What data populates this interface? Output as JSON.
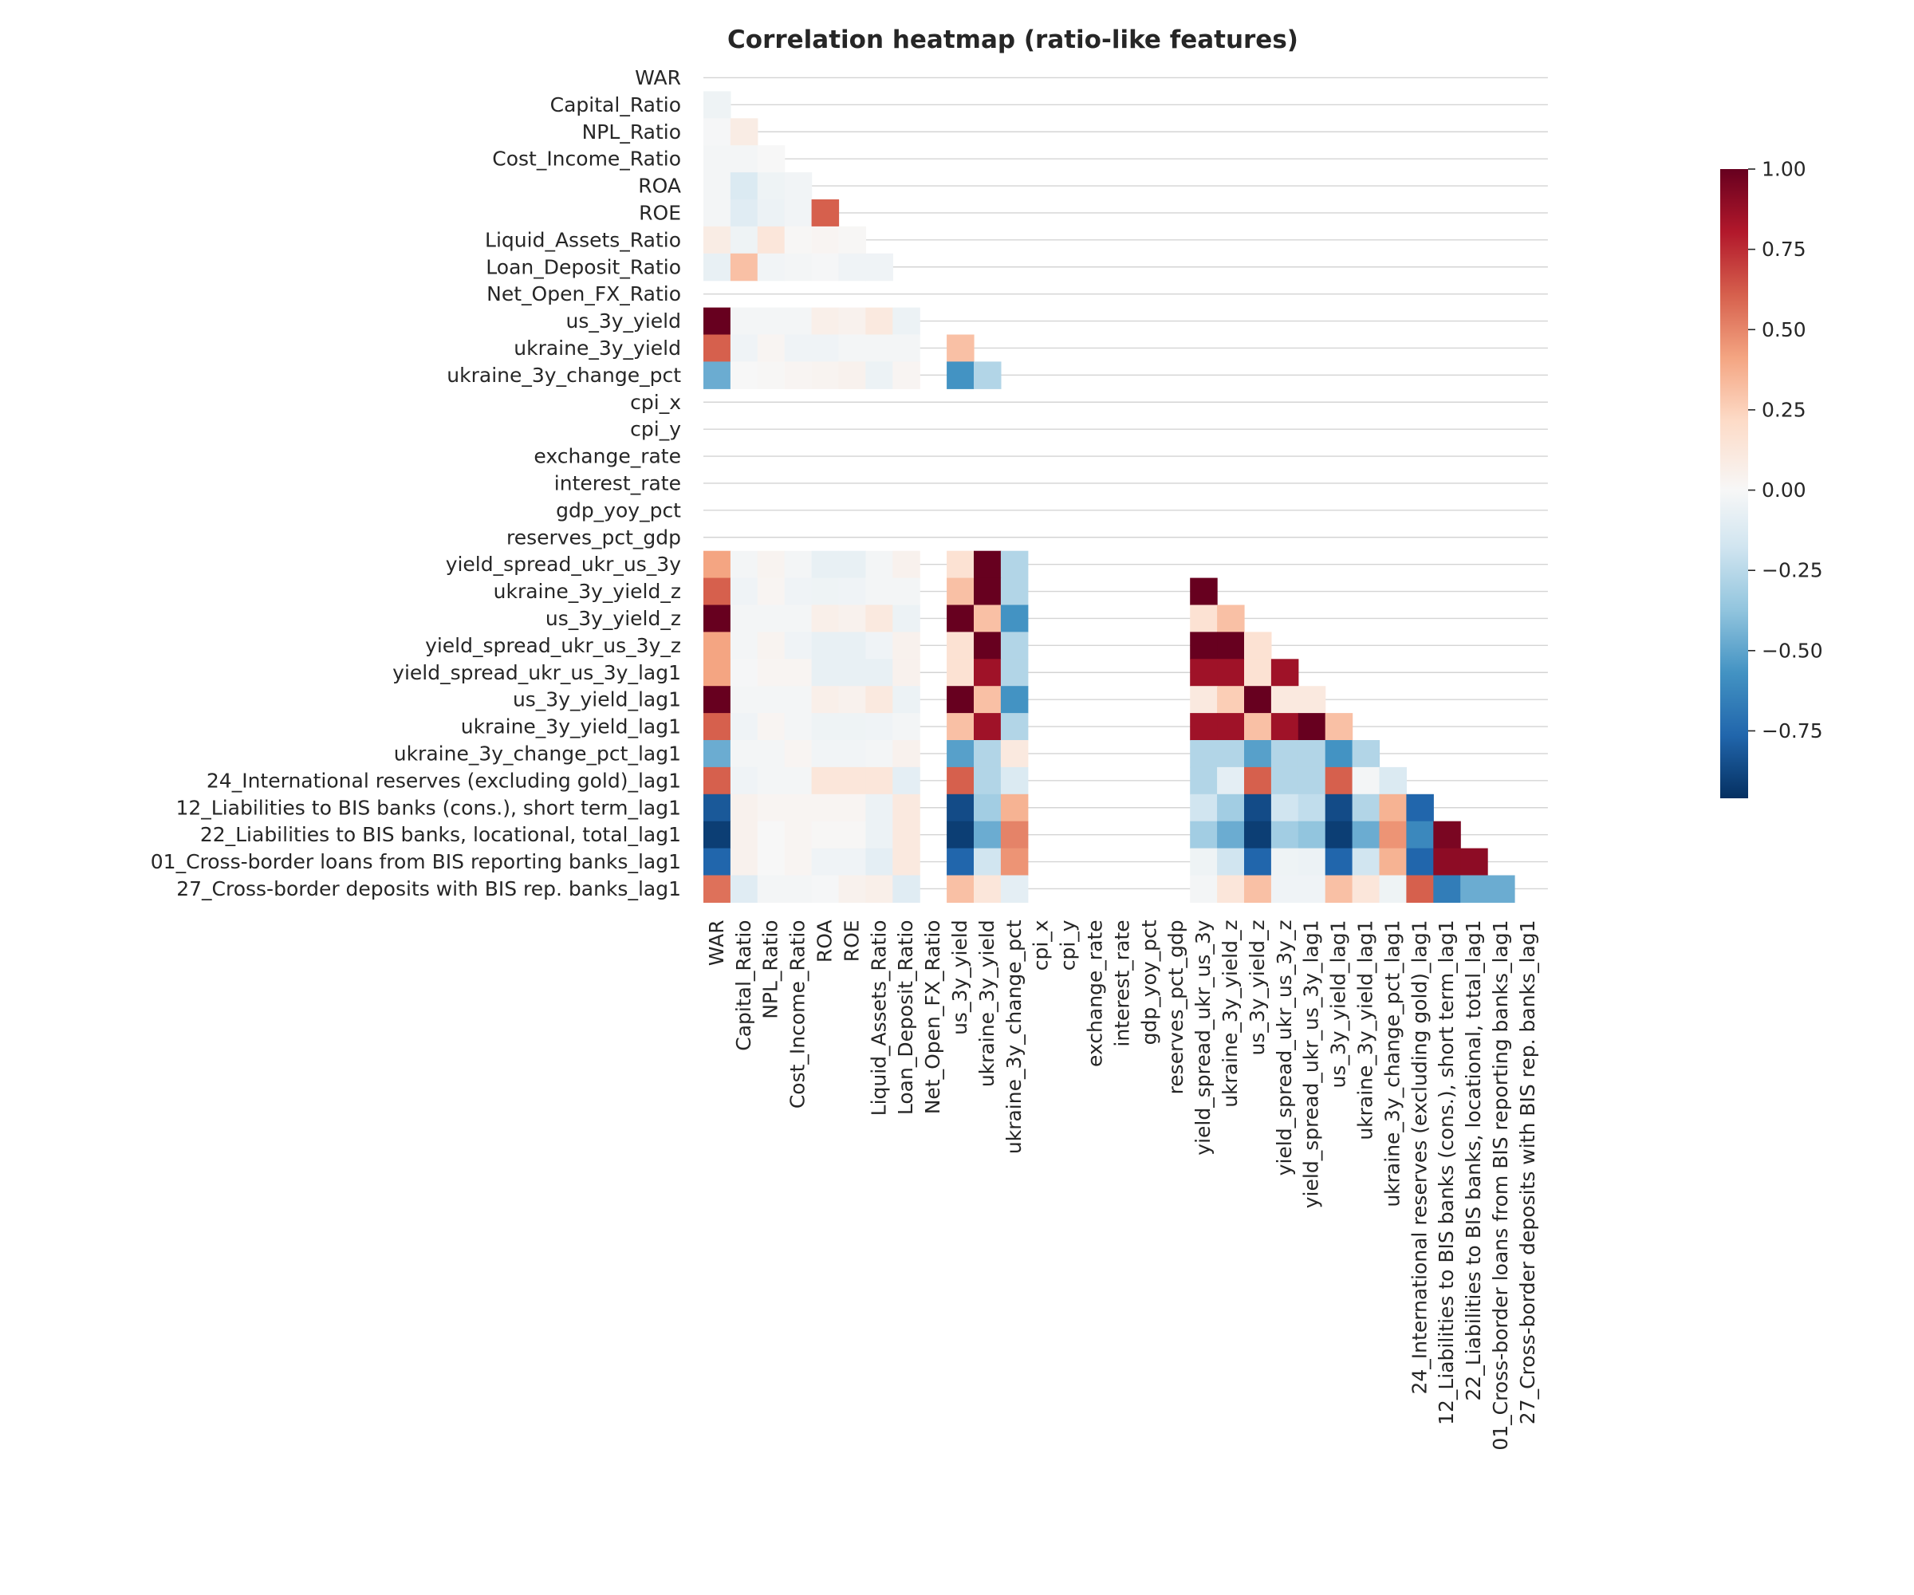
{
  "chart_data": {
    "type": "heatmap",
    "title": "Correlation heatmap (ratio-like features)",
    "labels": [
      "WAR",
      "Capital_Ratio",
      "NPL_Ratio",
      "Cost_Income_Ratio",
      "ROA",
      "ROE",
      "Liquid_Assets_Ratio",
      "Loan_Deposit_Ratio",
      "Net_Open_FX_Ratio",
      "us_3y_yield",
      "ukraine_3y_yield",
      "ukraine_3y_change_pct",
      "cpi_x",
      "cpi_y",
      "exchange_rate",
      "interest_rate",
      "gdp_yoy_pct",
      "reserves_pct_gdp",
      "yield_spread_ukr_us_3y",
      "ukraine_3y_yield_z",
      "us_3y_yield_z",
      "yield_spread_ukr_us_3y_z",
      "yield_spread_ukr_us_3y_lag1",
      "us_3y_yield_lag1",
      "ukraine_3y_yield_lag1",
      "ukraine_3y_change_pct_lag1",
      "24_International reserves (excluding gold)_lag1",
      "12_Liabilities to BIS banks (cons.), short term_lag1",
      "22_Liabilities to BIS banks, locational, total_lag1",
      "01_Cross-border loans from BIS reporting banks_lag1",
      "27_Cross-border deposits with BIS rep. banks_lag1"
    ],
    "mask": "upper-triangle including diagonal",
    "missing_rows_cols": [
      "Net_Open_FX_Ratio",
      "cpi_x",
      "cpi_y",
      "exchange_rate",
      "interest_rate",
      "gdp_yoy_pct",
      "reserves_pct_gdp"
    ],
    "lower_triangle_rows": {
      "Capital_Ratio": [
        -0.05
      ],
      "NPL_Ratio": [
        -0.01,
        0.08
      ],
      "Cost_Income_Ratio": [
        -0.02,
        -0.02,
        0.0
      ],
      "ROA": [
        -0.02,
        -0.15,
        -0.05,
        -0.03
      ],
      "ROE": [
        -0.02,
        -0.12,
        -0.06,
        -0.03,
        0.6
      ],
      "Liquid_Assets_Ratio": [
        0.08,
        -0.05,
        0.12,
        0.01,
        0.02,
        0.01
      ],
      "Loan_Deposit_Ratio": [
        -0.08,
        0.3,
        -0.03,
        -0.02,
        -0.01,
        -0.04,
        -0.04
      ],
      "Net_Open_FX_Ratio": [
        null,
        null,
        null,
        null,
        null,
        null,
        null,
        null
      ],
      "us_3y_yield": [
        1.0,
        -0.02,
        -0.02,
        -0.02,
        0.06,
        0.04,
        0.1,
        -0.06,
        null
      ],
      "ukraine_3y_yield": [
        0.6,
        -0.04,
        0.02,
        -0.04,
        -0.04,
        -0.02,
        -0.02,
        -0.02,
        null,
        0.3
      ],
      "ukraine_3y_change_pct": [
        -0.5,
        0.0,
        0.01,
        0.02,
        0.03,
        0.04,
        -0.06,
        0.02,
        null,
        -0.6,
        -0.3
      ],
      "cpi_x": [
        null,
        null,
        null,
        null,
        null,
        null,
        null,
        null,
        null,
        null,
        null,
        null
      ],
      "cpi_y": [
        null,
        null,
        null,
        null,
        null,
        null,
        null,
        null,
        null,
        null,
        null,
        null,
        null
      ],
      "exchange_rate": [
        null,
        null,
        null,
        null,
        null,
        null,
        null,
        null,
        null,
        null,
        null,
        null,
        null,
        null
      ],
      "interest_rate": [
        null,
        null,
        null,
        null,
        null,
        null,
        null,
        null,
        null,
        null,
        null,
        null,
        null,
        null,
        null
      ],
      "gdp_yoy_pct": [
        null,
        null,
        null,
        null,
        null,
        null,
        null,
        null,
        null,
        null,
        null,
        null,
        null,
        null,
        null,
        null
      ],
      "reserves_pct_gdp": [
        null,
        null,
        null,
        null,
        null,
        null,
        null,
        null,
        null,
        null,
        null,
        null,
        null,
        null,
        null,
        null,
        null
      ],
      "yield_spread_ukr_us_3y": [
        0.4,
        -0.02,
        0.03,
        -0.02,
        -0.08,
        -0.08,
        -0.02,
        0.04,
        null,
        0.15,
        1.0,
        -0.3,
        null,
        null,
        null,
        null,
        null,
        null
      ],
      "ukraine_3y_yield_z": [
        0.6,
        -0.04,
        0.02,
        -0.04,
        -0.05,
        -0.04,
        -0.02,
        -0.02,
        null,
        0.3,
        1.0,
        -0.3,
        null,
        null,
        null,
        null,
        null,
        null,
        1.0
      ],
      "us_3y_yield_z": [
        1.0,
        -0.02,
        -0.02,
        -0.02,
        0.06,
        0.04,
        0.1,
        -0.06,
        null,
        1.0,
        0.3,
        -0.6,
        null,
        null,
        null,
        null,
        null,
        null,
        0.15,
        0.3
      ],
      "yield_spread_ukr_us_3y_z": [
        0.4,
        -0.02,
        0.03,
        -0.04,
        -0.08,
        -0.08,
        -0.04,
        0.04,
        null,
        0.15,
        1.0,
        -0.3,
        null,
        null,
        null,
        null,
        null,
        null,
        1.0,
        1.0,
        0.15
      ],
      "yield_spread_ukr_us_3y_lag1": [
        0.4,
        -0.01,
        0.02,
        0.02,
        -0.08,
        -0.08,
        -0.08,
        0.04,
        null,
        0.15,
        0.85,
        -0.3,
        null,
        null,
        null,
        null,
        null,
        null,
        0.85,
        0.85,
        0.15,
        0.85
      ],
      "us_3y_yield_lag1": [
        1.0,
        -0.02,
        -0.02,
        -0.02,
        0.06,
        0.04,
        0.1,
        -0.06,
        null,
        1.0,
        0.3,
        -0.6,
        null,
        null,
        null,
        null,
        null,
        null,
        0.1,
        0.25,
        1.0,
        0.1,
        0.1
      ],
      "ukraine_3y_yield_lag1": [
        0.6,
        -0.04,
        0.02,
        -0.02,
        -0.05,
        -0.05,
        -0.04,
        -0.02,
        null,
        0.3,
        0.85,
        -0.3,
        null,
        null,
        null,
        null,
        null,
        null,
        0.85,
        0.85,
        0.3,
        0.85,
        1.0,
        0.3
      ],
      "ukraine_3y_change_pct_lag1": [
        -0.5,
        -0.02,
        -0.02,
        0.02,
        -0.03,
        -0.03,
        -0.02,
        0.04,
        null,
        -0.55,
        -0.3,
        0.1,
        null,
        null,
        null,
        null,
        null,
        null,
        -0.3,
        -0.3,
        -0.55,
        -0.3,
        -0.3,
        -0.6,
        -0.3
      ],
      "24_International reserves (excluding gold)_lag1": [
        0.6,
        -0.04,
        -0.02,
        -0.02,
        0.12,
        0.12,
        0.12,
        -0.1,
        null,
        0.6,
        -0.3,
        -0.15,
        null,
        null,
        null,
        null,
        null,
        null,
        -0.3,
        -0.1,
        0.6,
        -0.3,
        -0.3,
        0.6,
        -0.02,
        -0.15
      ],
      "12_Liabilities to BIS banks (cons.), short term_lag1": [
        -0.85,
        0.04,
        0.02,
        0.02,
        0.02,
        0.02,
        -0.06,
        0.1,
        null,
        -0.9,
        -0.35,
        0.35,
        null,
        null,
        null,
        null,
        null,
        null,
        -0.2,
        -0.35,
        -0.9,
        -0.2,
        -0.25,
        -0.9,
        -0.3,
        0.35,
        -0.8
      ],
      "22_Liabilities to BIS banks, locational, total_lag1": [
        -0.95,
        0.04,
        0.0,
        0.02,
        0.01,
        0.01,
        -0.06,
        0.1,
        null,
        -0.95,
        -0.5,
        0.5,
        null,
        null,
        null,
        null,
        null,
        null,
        -0.35,
        -0.5,
        -0.95,
        -0.35,
        -0.4,
        -0.95,
        -0.5,
        0.45,
        -0.65,
        0.95
      ],
      "01_Cross-border loans from BIS reporting banks_lag1": [
        -0.8,
        0.04,
        0.0,
        0.02,
        -0.04,
        -0.04,
        -0.1,
        0.1,
        null,
        -0.8,
        -0.2,
        0.45,
        null,
        null,
        null,
        null,
        null,
        null,
        -0.05,
        -0.2,
        -0.8,
        -0.05,
        -0.06,
        -0.8,
        -0.2,
        0.35,
        -0.8,
        0.9,
        0.9
      ],
      "27_Cross-border deposits with BIS rep. banks_lag1": [
        0.55,
        -0.12,
        -0.02,
        -0.02,
        -0.01,
        0.04,
        0.06,
        -0.12,
        null,
        0.3,
        0.12,
        -0.1,
        null,
        null,
        null,
        null,
        null,
        null,
        -0.02,
        0.12,
        0.3,
        -0.04,
        -0.04,
        0.3,
        0.12,
        -0.05,
        0.6,
        -0.7,
        -0.5,
        -0.5
      ]
    },
    "colorbar": {
      "ticks": [
        1.0,
        0.75,
        0.5,
        0.25,
        0.0,
        -0.25,
        -0.5,
        -0.75
      ],
      "tick_labels": [
        "1.00",
        "0.75",
        "0.50",
        "0.25",
        "0.00",
        "−0.25",
        "−0.50",
        "−0.75"
      ],
      "vmin": -0.96,
      "vmax": 1.0,
      "colormap": "RdBu_r"
    },
    "grid": true
  }
}
